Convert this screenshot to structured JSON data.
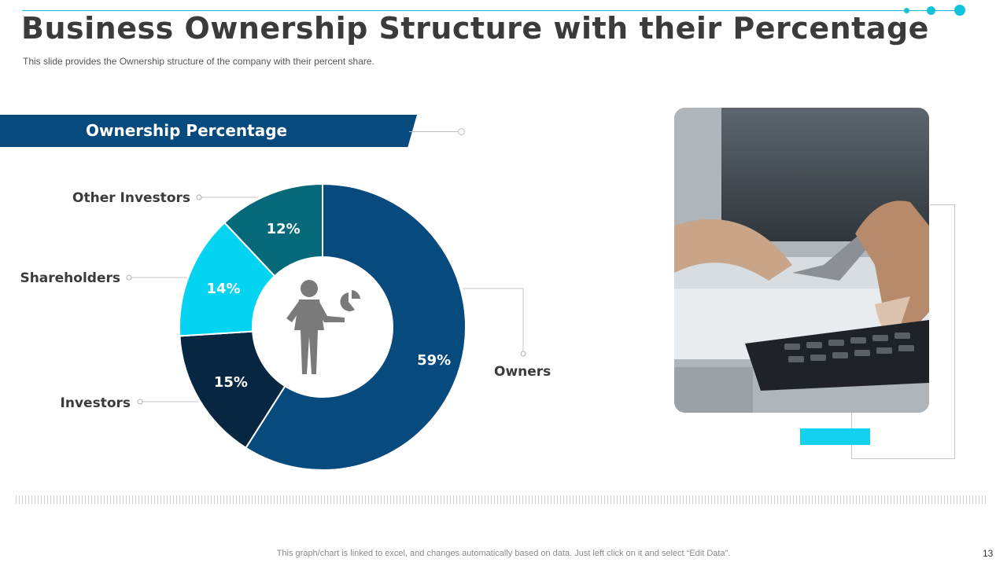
{
  "slide": {
    "title": "Business Ownership Structure with their Percentage",
    "subtitle": "This slide provides  the Ownership  structure of the company with their percent share.",
    "banner": "Ownership Percentage",
    "footnote": "This graph/chart is linked to excel,  and changes automatically based on data. Just left click on it and select “Edit Data”.",
    "page_number": "13",
    "accent_color": "#12c2dc"
  },
  "chart_data": {
    "type": "pie",
    "categories": [
      "Owners",
      "Investors",
      "Shareholders",
      "Other Investors"
    ],
    "values": [
      59,
      15,
      14,
      12
    ],
    "labels": [
      "59%",
      "15%",
      "14%",
      "12%"
    ],
    "colors": [
      "#064a7e",
      "#072641",
      "#04d4f2",
      "#05697a"
    ],
    "center_icon": "businessman-with-pie-chart-icon"
  },
  "photo": {
    "description_icon": "hand-using-calculator-photo"
  }
}
